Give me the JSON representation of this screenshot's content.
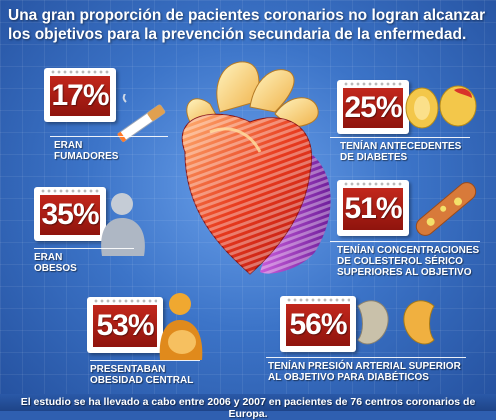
{
  "headline": {
    "line1": "Una gran proporción de pacientes coronarios no logran alcanzar",
    "line2": "los objetivos para la prevención secundaria de la enfermedad."
  },
  "stats": [
    {
      "value": "17%",
      "line1": "ERAN",
      "line2": "FUMADORES",
      "line3": "",
      "icon": "cigarette-icon"
    },
    {
      "value": "35%",
      "line1": "ERAN",
      "line2": "OBESOS",
      "line3": "",
      "icon": "obese-person-icon"
    },
    {
      "value": "53%",
      "line1": "PRESENTABAN",
      "line2": "OBESIDAD CENTRAL",
      "line3": "",
      "icon": "central-obesity-person-icon"
    },
    {
      "value": "25%",
      "line1": "TENÍAN ANTECEDENTES",
      "line2": "DE DIABETES",
      "line3": "",
      "icon": "pancreas-icon"
    },
    {
      "value": "51%",
      "line1": "TENÍAN CONCENTRACIONES",
      "line2": "DE COLESTEROL SÉRICO",
      "line3": "SUPERIORES AL OBJETIVO",
      "icon": "artery-plaque-icon"
    },
    {
      "value": "56%",
      "line1": "TENÍAN PRESIÓN ARTERIAL SUPERIOR",
      "line2": "AL OBJETIVO PARA DIABÉTICOS",
      "line3": "",
      "icon": "kidneys-icon"
    }
  ],
  "footer": "El estudio se ha llevado a cabo entre 2006 y 2007 en pacientes de 76 centros coronarios de Europa.",
  "colors": {
    "background": "#3c74c8",
    "card_red": "#c2271c",
    "text": "#ffffff"
  }
}
